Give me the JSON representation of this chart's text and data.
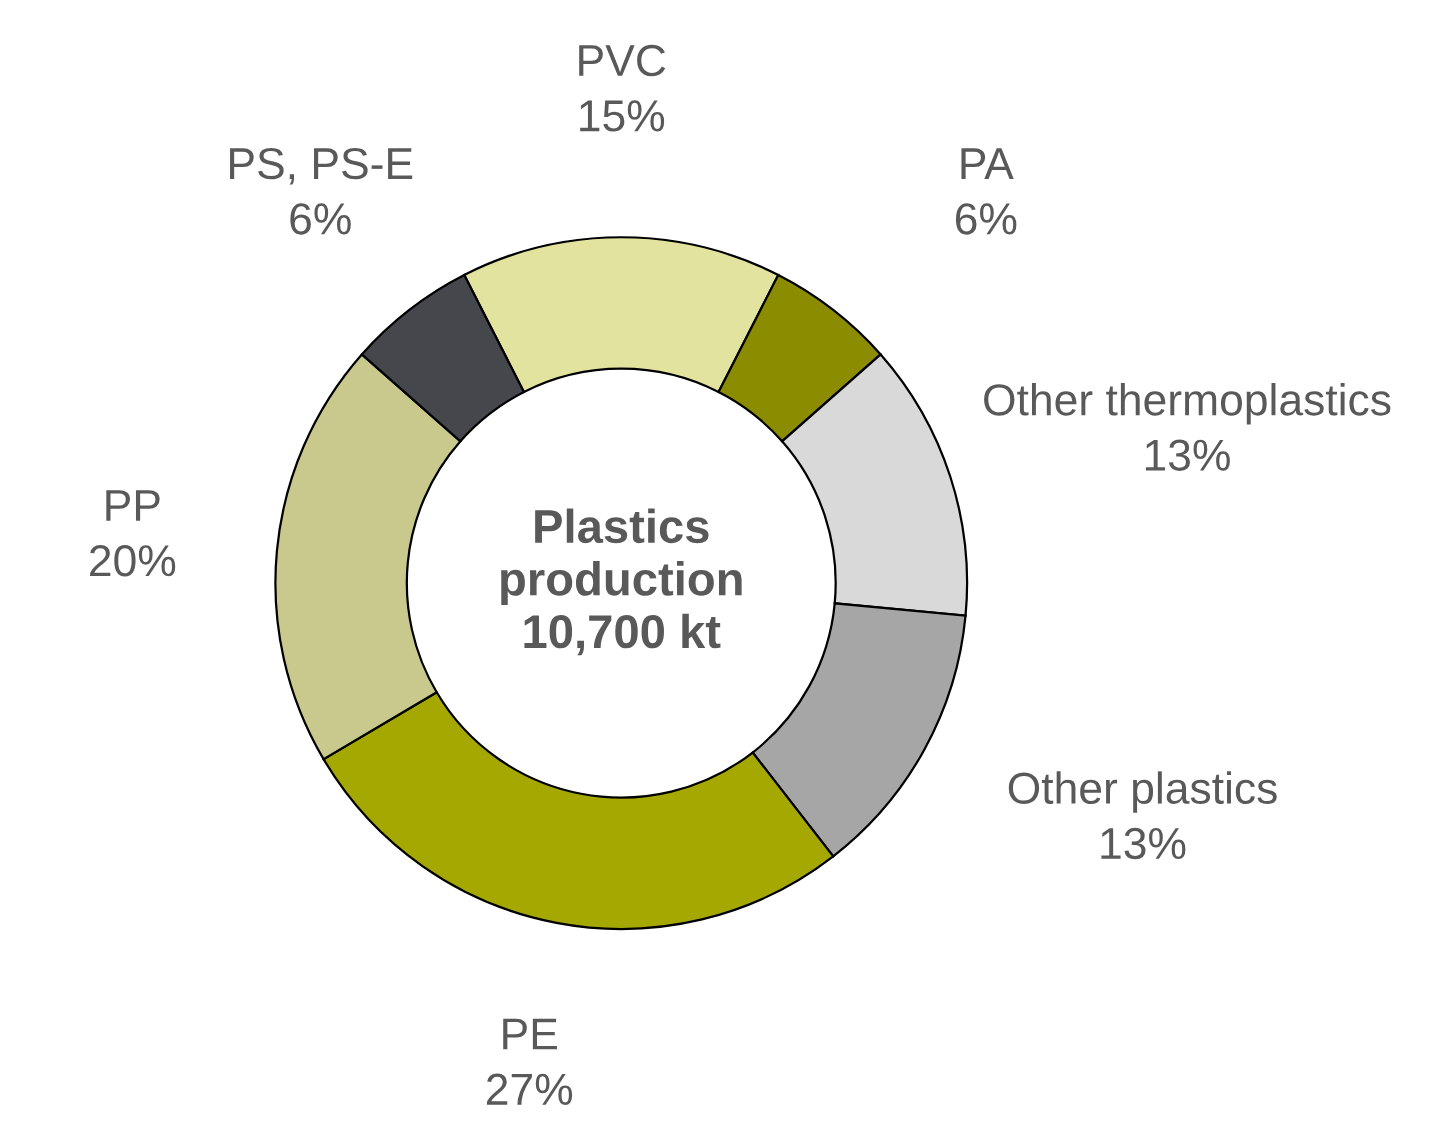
{
  "chart_data": {
    "type": "donut",
    "categories": [
      "PVC",
      "PA",
      "Other thermoplastics",
      "Other plastics",
      "PE",
      "PP",
      "PS, PS-E"
    ],
    "values": [
      15,
      6,
      13,
      13,
      27,
      20,
      6
    ],
    "colors": [
      "#e3e3a0",
      "#8c8c00",
      "#d9d9d9",
      "#a6a6a6",
      "#a5a800",
      "#c9c98e",
      "#45474c"
    ],
    "value_labels": [
      "15%",
      "6%",
      "13%",
      "13%",
      "27%",
      "20%",
      "6%"
    ],
    "annotations": [
      "Plastics\nproduction\n10,700 kt"
    ],
    "legend": false
  }
}
